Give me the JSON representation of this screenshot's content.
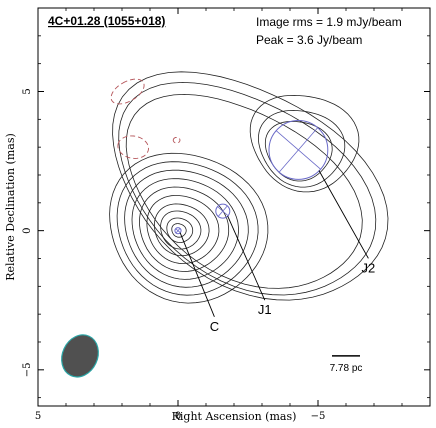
{
  "chart_data": {
    "type": "contour",
    "title": "4C+01.28 (1055+018)",
    "info_lines": [
      "Image rms = 1.9 mJy/beam",
      "Peak = 3.6 Jy/beam"
    ],
    "xlabel": "Right Ascension  (mas)",
    "ylabel": "Relative Declination  (mas)",
    "xlim": [
      5,
      -9
    ],
    "ylim": [
      -6.3,
      8
    ],
    "x_ticks": [
      5,
      0,
      -5
    ],
    "y_ticks": [
      5,
      0,
      -5
    ],
    "x_tick_labels": [
      "5",
      "0",
      "−5"
    ],
    "y_tick_labels": [
      "5",
      "0",
      "−5"
    ],
    "components": [
      {
        "label": "C",
        "x": 0.0,
        "y": 0.0,
        "diameter_mas": 0.22
      },
      {
        "label": "J1",
        "x": -1.6,
        "y": 0.7,
        "diameter_mas": 0.5
      },
      {
        "label": "J2",
        "x": -4.3,
        "y": 2.9,
        "diameter_mas": 2.1
      }
    ],
    "beam": {
      "x": 3.5,
      "y": -4.5,
      "major_mas": 1.55,
      "minor_mas": 1.25,
      "pa_deg": 25,
      "color": "#505050",
      "edge": "#2aa6a6"
    },
    "scale_bar": {
      "label": "7.78 pc",
      "length_mas": 1.0
    },
    "colors": {
      "contour": "#222222",
      "negative_contour": "#b5555a",
      "component": "#6a6ac8",
      "frame": "#000000"
    }
  }
}
